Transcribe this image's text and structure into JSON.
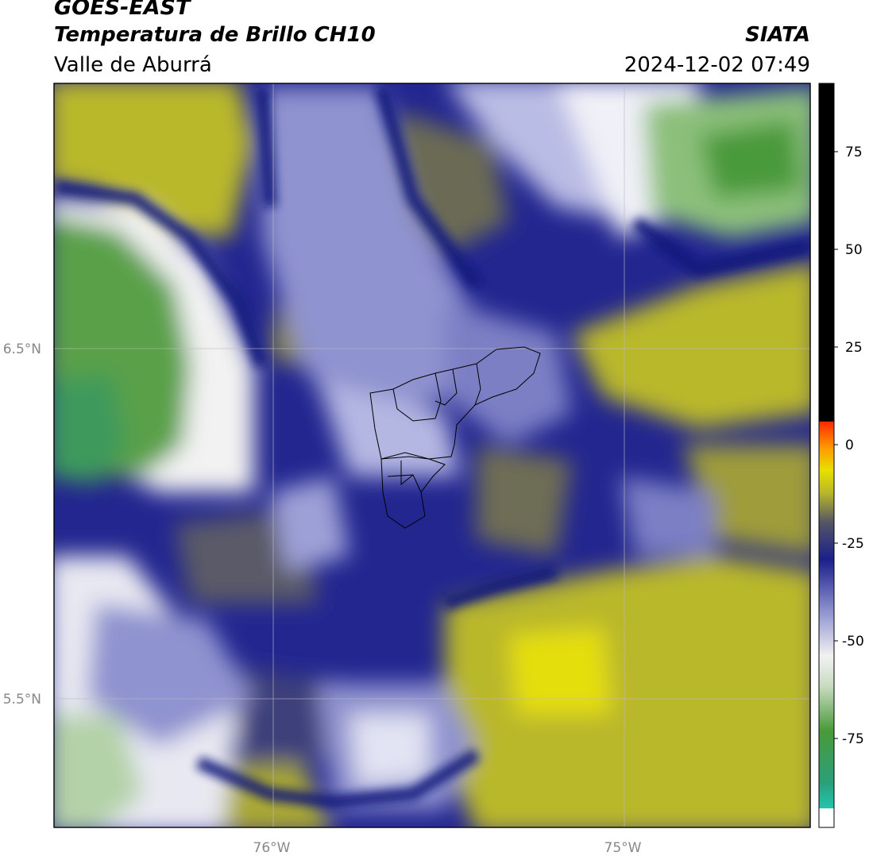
{
  "header": {
    "satellite": "GOES-EAST",
    "product": "Temperatura de Brillo CH10",
    "region": "Valle de Aburrá",
    "organization": "SIATA",
    "timestamp": "2024-12-02 07:49"
  },
  "map": {
    "lon_labels": [
      "76°W",
      "75°W"
    ],
    "lat_labels": [
      "6.5°N",
      "5.5°N"
    ]
  },
  "colorbar": {
    "ticks": [
      "75",
      "50",
      "25",
      "0",
      "-25",
      "-50",
      "-75"
    ],
    "colors": {
      "black": "#000000",
      "red": "#ff2a00",
      "orange": "#ff9a00",
      "yellow": "#e8e000",
      "olive": "#b9b72a",
      "navy": "#1b1f8a",
      "lavender": "#8f93cf",
      "white": "#f2f2f2",
      "green": "#4a9a3a",
      "cyan": "#1de0d6"
    }
  }
}
